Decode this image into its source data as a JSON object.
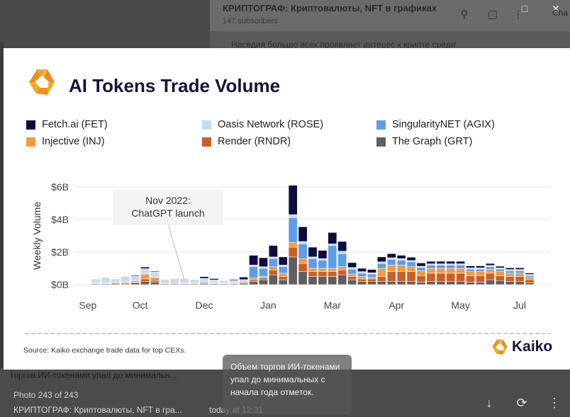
{
  "window": {
    "channel_title": "КРИПТОГРАФ: Криптовалюты, NFT в графиках",
    "channel_subtitle": "147 subscribers",
    "background_message": "Наседия больше всех проявляет интерес к крипте среди",
    "cut_label": "Cha"
  },
  "chart_data": {
    "type": "bar",
    "title": "AI Tokens Trade Volume",
    "ylabel": "Weekly Volume",
    "xlabel": "",
    "yticks": [
      "$0B",
      "$2B",
      "$4B",
      "$6B"
    ],
    "ylim": [
      0,
      6
    ],
    "xticks": [
      "Sep",
      "Oct",
      "Dec",
      "Jan",
      "Mar",
      "Apr",
      "May",
      "Jul"
    ],
    "annotation": {
      "line1": "Nov 2022:",
      "line2": "ChatGPT launch",
      "week_index": 9
    },
    "grid": true,
    "legend_placement": "top",
    "series": [
      {
        "name": "Fetch.ai (FET)",
        "color": "#0d0d3d",
        "values": [
          0.02,
          0.03,
          0.02,
          0.03,
          0.05,
          0.1,
          0.05,
          0.02,
          0.02,
          0.02,
          0.02,
          0.1,
          0.08,
          0.02,
          0.05,
          0.15,
          0.6,
          0.55,
          0.7,
          0.5,
          1.8,
          0.9,
          0.6,
          0.5,
          0.7,
          0.6,
          0.3,
          0.2,
          0.2,
          0.3,
          0.25,
          0.2,
          0.2,
          0.2,
          0.15,
          0.15,
          0.15,
          0.15,
          0.12,
          0.12,
          0.12,
          0.1,
          0.1,
          0.1,
          0.08
        ]
      },
      {
        "name": "Oasis Network (ROSE)",
        "color": "#c5dcf2",
        "values": [
          0.25,
          0.3,
          0.2,
          0.3,
          0.3,
          0.3,
          0.3,
          0.2,
          0.25,
          0.25,
          0.2,
          0.2,
          0.15,
          0.15,
          0.15,
          0.1,
          0.1,
          0.1,
          0.1,
          0.1,
          0.2,
          0.15,
          0.1,
          0.1,
          0.1,
          0.15,
          0.1,
          0.1,
          0.08,
          0.1,
          0.1,
          0.1,
          0.08,
          0.08,
          0.08,
          0.08,
          0.08,
          0.08,
          0.08,
          0.08,
          0.08,
          0.08,
          0.08,
          0.08,
          0.08
        ]
      },
      {
        "name": "SingularityNET (AGIX)",
        "color": "#5d9ee8",
        "values": [
          0,
          0,
          0,
          0,
          0,
          0.03,
          0.02,
          0,
          0,
          0,
          0,
          0.05,
          0.03,
          0,
          0,
          0.05,
          0.7,
          0.5,
          0.5,
          0.4,
          1.5,
          0.9,
          0.6,
          0.5,
          1.4,
          0.8,
          0.3,
          0.2,
          0.2,
          0.3,
          0.35,
          0.3,
          0.3,
          0.2,
          0.2,
          0.2,
          0.2,
          0.2,
          0.15,
          0.15,
          0.15,
          0.15,
          0.15,
          0.15,
          0.1
        ]
      },
      {
        "name": "Injective (INJ)",
        "color": "#f59a3e",
        "values": [
          0.03,
          0.03,
          0.05,
          0.05,
          0.08,
          0.3,
          0.2,
          0.05,
          0.05,
          0.04,
          0.04,
          0.04,
          0.03,
          0.02,
          0.03,
          0.03,
          0.1,
          0.1,
          0.2,
          0.2,
          0.3,
          0.3,
          0.2,
          0.2,
          0.2,
          0.2,
          0.15,
          0.15,
          0.1,
          0.5,
          0.4,
          0.4,
          0.3,
          0.3,
          0.3,
          0.3,
          0.3,
          0.3,
          0.25,
          0.25,
          0.25,
          0.25,
          0.2,
          0.2,
          0.15
        ]
      },
      {
        "name": "Render (RNDR)",
        "color": "#c8602a",
        "values": [
          0.02,
          0.02,
          0.05,
          0.05,
          0.05,
          0.15,
          0.1,
          0.02,
          0.02,
          0.02,
          0.02,
          0.05,
          0.03,
          0.02,
          0.03,
          0.05,
          0.1,
          0.1,
          0.3,
          0.2,
          0.6,
          0.5,
          0.3,
          0.3,
          0.3,
          0.3,
          0.2,
          0.15,
          0.15,
          0.3,
          0.6,
          0.6,
          0.6,
          0.4,
          0.5,
          0.5,
          0.5,
          0.5,
          0.4,
          0.4,
          0.4,
          0.3,
          0.3,
          0.3,
          0.2
        ]
      },
      {
        "name": "The Graph (GRT)",
        "color": "#5f5f5f",
        "values": [
          0.05,
          0.05,
          0.05,
          0.05,
          0.1,
          0.2,
          0.15,
          0.05,
          0.05,
          0.05,
          0.05,
          0.05,
          0.05,
          0.05,
          0.05,
          0.08,
          0.2,
          0.3,
          0.6,
          0.3,
          1.7,
          0.8,
          0.5,
          0.5,
          0.5,
          0.6,
          0.3,
          0.2,
          0.2,
          0.2,
          0.2,
          0.2,
          0.2,
          0.15,
          0.2,
          0.2,
          0.2,
          0.2,
          0.15,
          0.15,
          0.3,
          0.25,
          0.2,
          0.2,
          0.1
        ]
      }
    ]
  },
  "legend": [
    {
      "label": "Fetch.ai (FET)",
      "color": "#0d0d3d"
    },
    {
      "label": "Oasis Network (ROSE)",
      "color": "#c5dcf2"
    },
    {
      "label": "SingularityNET (AGIX)",
      "color": "#5d9ee8"
    },
    {
      "label": "Injective (INJ)",
      "color": "#f59a3e"
    },
    {
      "label": "Render (RNDR)",
      "color": "#c8602a"
    },
    {
      "label": "The Graph (GRT)",
      "color": "#5f5f5f"
    }
  ],
  "source": "Source: Kaiko exchange trade data for top CEXs.",
  "brand": "Kaiko",
  "viewer": {
    "caption_strip": "торгов ИИ-токенами упал до минимальн...",
    "counter": "Photo 243 of 243",
    "from": "КРИПТОГРАФ: Криптовалюты, NFT в гра...",
    "time": "today at 12:31",
    "message_text": "Объем торгов ИИ-токенами упал до минимальных с начала года отметок."
  }
}
